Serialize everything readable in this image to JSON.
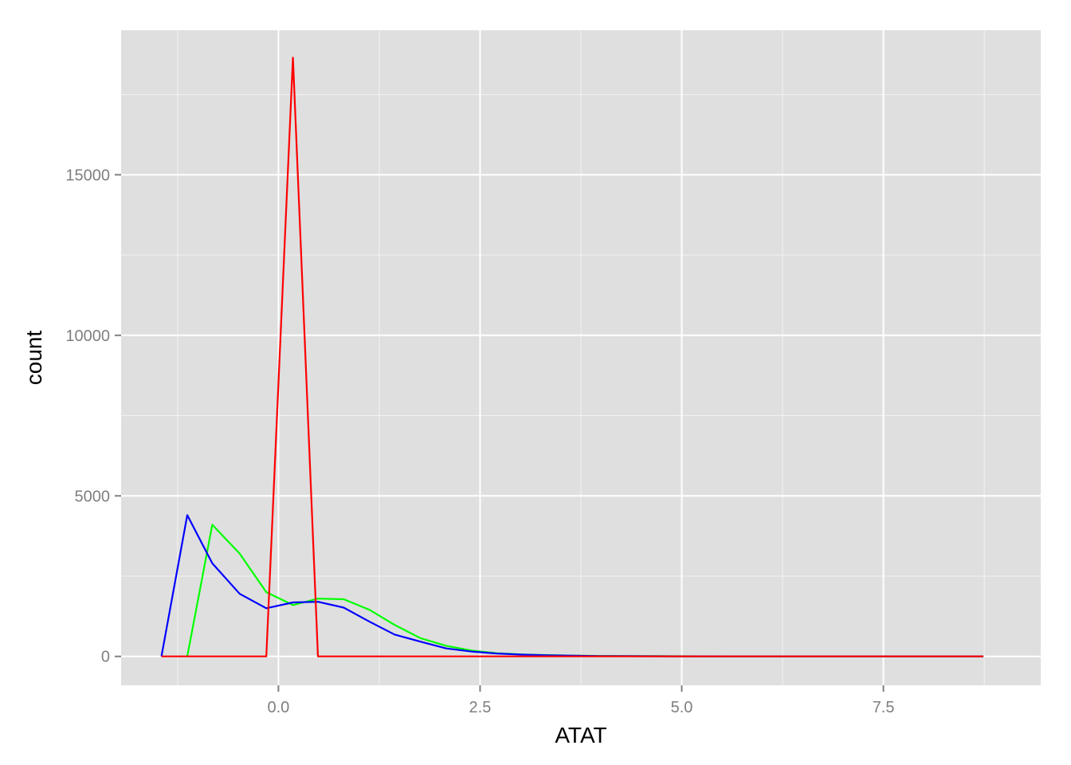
{
  "chart_data": {
    "type": "line",
    "title": "",
    "xlabel": "ATAT",
    "ylabel": "count",
    "xlim": [
      -1.95,
      9.45
    ],
    "ylim": [
      -900,
      19500
    ],
    "x_ticks": [
      0.0,
      2.5,
      5.0,
      7.5
    ],
    "x_tick_labels": [
      "0.0",
      "2.5",
      "5.0",
      "7.5"
    ],
    "x_minor_ticks": [
      -1.25,
      1.25,
      3.75,
      6.25,
      8.75
    ],
    "y_ticks": [
      0,
      5000,
      10000,
      15000
    ],
    "y_tick_labels": [
      "0",
      "5000",
      "10000",
      "15000"
    ],
    "y_minor_ticks": [
      2500,
      7500,
      12500,
      17500
    ],
    "grid": true,
    "panel_background": "#dfdfdf",
    "grid_color": "#ffffff",
    "series": [
      {
        "name": "green",
        "color": "#00ff00",
        "x": [
          -1.13,
          -0.82,
          -0.48,
          -0.15,
          0.18,
          0.49,
          0.81,
          1.13,
          1.44,
          1.76,
          2.08,
          2.4,
          2.71,
          3.03,
          3.35,
          3.67,
          3.98,
          4.3,
          4.62,
          4.93,
          5.25,
          5.57,
          5.89,
          6.2,
          6.52,
          6.84,
          7.15,
          7.47,
          7.79,
          8.11,
          8.42,
          8.74
        ],
        "y": [
          0,
          4100,
          3200,
          2000,
          1600,
          1800,
          1780,
          1450,
          980,
          570,
          330,
          180,
          100,
          60,
          40,
          25,
          15,
          10,
          8,
          5,
          4,
          3,
          2,
          2,
          1,
          1,
          1,
          1,
          0,
          0,
          0,
          0
        ]
      },
      {
        "name": "blue",
        "color": "#0000ff",
        "x": [
          -1.45,
          -1.13,
          -0.82,
          -0.48,
          -0.15,
          0.18,
          0.49,
          0.81,
          1.13,
          1.44,
          1.76,
          2.08,
          2.4,
          2.71,
          3.03,
          3.35,
          3.67,
          3.98,
          4.3,
          4.62,
          4.93,
          5.25,
          5.57,
          5.89,
          6.2,
          6.52,
          6.84,
          7.15,
          7.47,
          7.79,
          8.11,
          8.42,
          8.74
        ],
        "y": [
          0,
          4400,
          2900,
          1950,
          1500,
          1680,
          1700,
          1520,
          1080,
          680,
          460,
          250,
          150,
          90,
          55,
          35,
          20,
          12,
          8,
          5,
          4,
          3,
          2,
          2,
          1,
          1,
          1,
          1,
          0,
          0,
          0,
          0,
          0
        ]
      },
      {
        "name": "red",
        "color": "#ff0000",
        "x": [
          -1.45,
          -0.15,
          0.18,
          0.49,
          8.74
        ],
        "y": [
          0,
          0,
          18650,
          0,
          0
        ]
      }
    ]
  }
}
